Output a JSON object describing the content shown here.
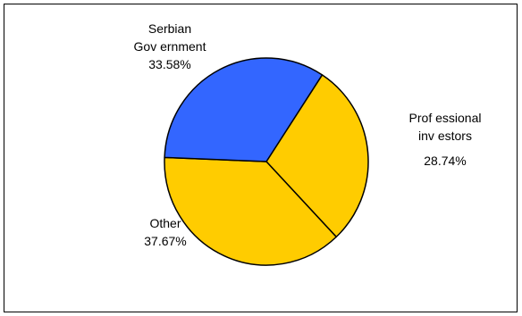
{
  "chart_data": {
    "type": "pie",
    "slices": [
      {
        "label_lines": [
          "Serbian",
          "Gov ernment"
        ],
        "value_label": "33.58%",
        "value": 33.58,
        "color": "#3366FF"
      },
      {
        "label_lines": [
          "Prof essional",
          "inv estors"
        ],
        "value_label": "28.74%",
        "value": 28.74,
        "color": "#FFCC00"
      },
      {
        "label_lines": [
          "Other"
        ],
        "value_label": "37.67%",
        "value": 37.67,
        "color": "#FFCC00"
      }
    ]
  }
}
